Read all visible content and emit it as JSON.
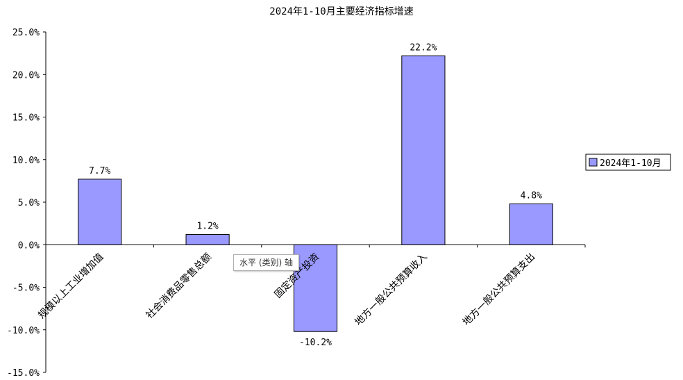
{
  "chart_data": {
    "type": "bar",
    "title": "2024年1-10月主要经济指标增速",
    "categories": [
      "规模以上工业增加值",
      "社会消费品零售总额",
      "固定资产投资",
      "地方一般公共预算收入",
      "地方一般公共预算支出"
    ],
    "series": [
      {
        "name": "2024年1-10月",
        "values": [
          7.7,
          1.2,
          -10.2,
          22.2,
          4.8
        ],
        "color": "#9999ff"
      }
    ],
    "data_labels": [
      "7.7%",
      "1.2%",
      "-10.2%",
      "22.2%",
      "4.8%"
    ],
    "ylim": [
      -15,
      25
    ],
    "y_ticks": [
      25,
      20,
      15,
      10,
      5,
      0,
      -5,
      -10,
      -15
    ],
    "y_tick_labels": [
      "25.0%",
      "20.0%",
      "15.0%",
      "10.0%",
      "5.0%",
      "0.0%",
      "-5.0%",
      "-10.0%",
      "-15.0%"
    ],
    "grid": false,
    "legend": "right"
  },
  "tooltip": "水平 (类别) 轴"
}
